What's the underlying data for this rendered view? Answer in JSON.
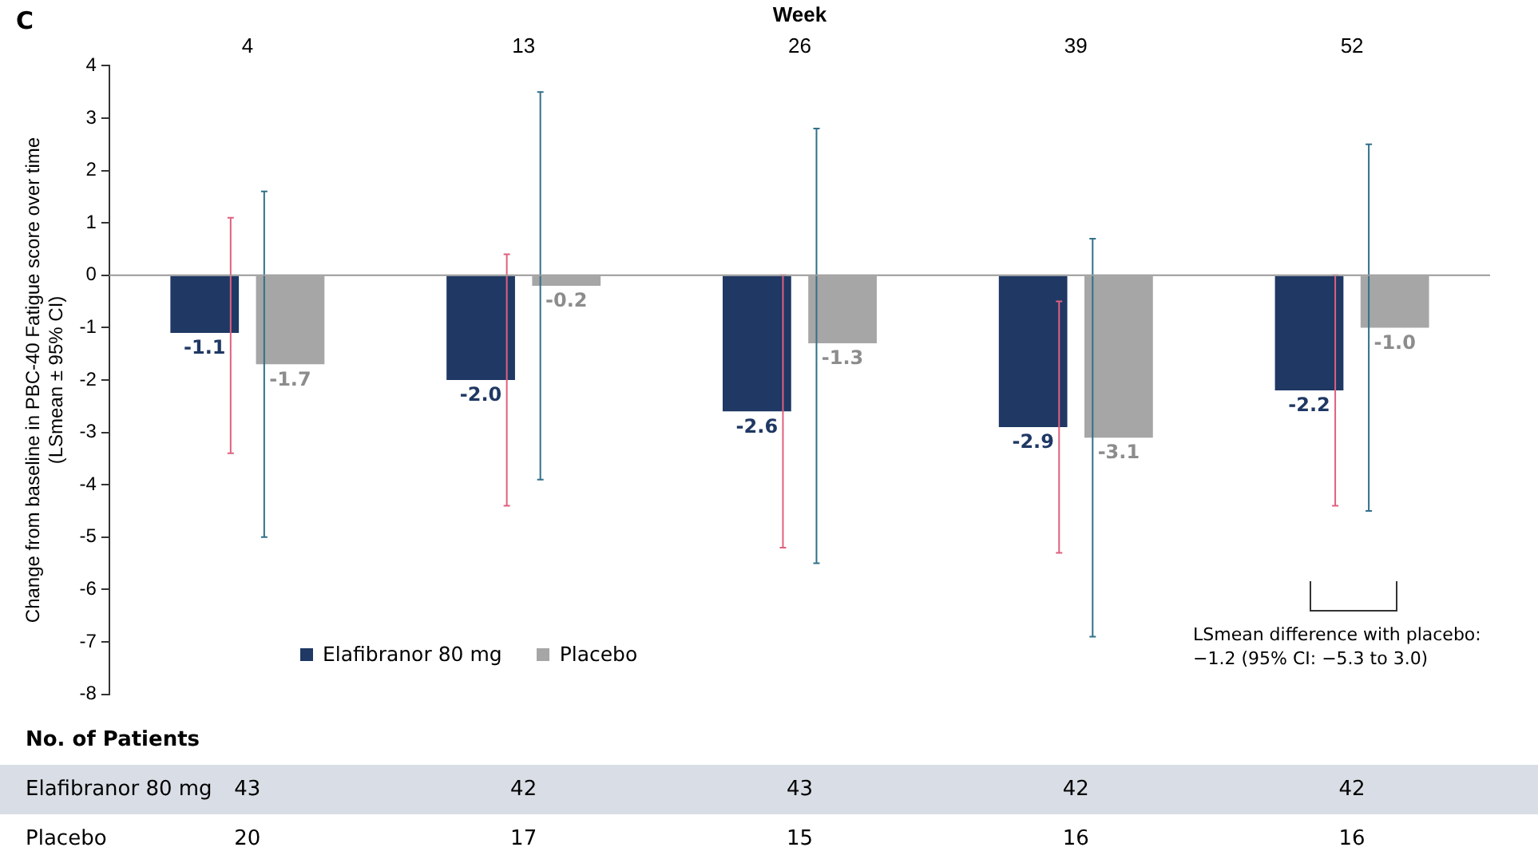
{
  "chart_data": {
    "type": "bar",
    "title": "C",
    "xlabel": "Week",
    "ylabel": "Change from baseline in PBC-40 Fatigue score over time (LSmean ± 95% CI)",
    "categories": [
      "4",
      "13",
      "26",
      "39",
      "52"
    ],
    "series": [
      {
        "name": "Elafibranor 80 mg",
        "color": "#1f3864",
        "values": [
          -1.1,
          -2.0,
          -2.6,
          -2.9,
          -2.2
        ],
        "value_labels": [
          "-1.1",
          "-2.0",
          "-2.6",
          "-2.9",
          "-2.2"
        ],
        "errors": [
          [
            -3.4,
            1.1
          ],
          [
            -4.4,
            0.4
          ],
          [
            -5.2,
            0.0
          ],
          [
            -5.3,
            -0.5
          ],
          [
            -4.4,
            0.0
          ]
        ]
      },
      {
        "name": "Placebo",
        "color": "#a6a6a6",
        "values": [
          -1.7,
          -0.2,
          -1.3,
          -3.1,
          -1.0
        ],
        "value_labels": [
          "-1.7",
          "-0.2",
          "-1.3",
          "-3.1",
          "-1.0"
        ],
        "errors": [
          [
            -5.0,
            1.6
          ],
          [
            -3.9,
            3.5
          ],
          [
            -5.5,
            2.8
          ],
          [
            -6.9,
            0.7
          ],
          [
            -4.5,
            2.5
          ]
        ]
      }
    ],
    "ylim": [
      -8,
      4
    ],
    "yticks": [
      -8,
      -7,
      -6,
      -5,
      -4,
      -3,
      -2,
      -1,
      0,
      1,
      2,
      3,
      4
    ],
    "grid": false,
    "legend": "bottom left",
    "ref_lines": [
      {
        "axis": "y",
        "value": 0,
        "color": "#999999"
      }
    ],
    "annotations": [
      "LSmean difference with placebo: −1.2 (95% CI: −5.3 to 3.0)",
      "No. of Patients",
      "Elafibranor 80 mg",
      "43",
      "42",
      "43",
      "42",
      "42",
      "Placebo",
      "20",
      "17",
      "15",
      "16",
      "16"
    ]
  }
}
